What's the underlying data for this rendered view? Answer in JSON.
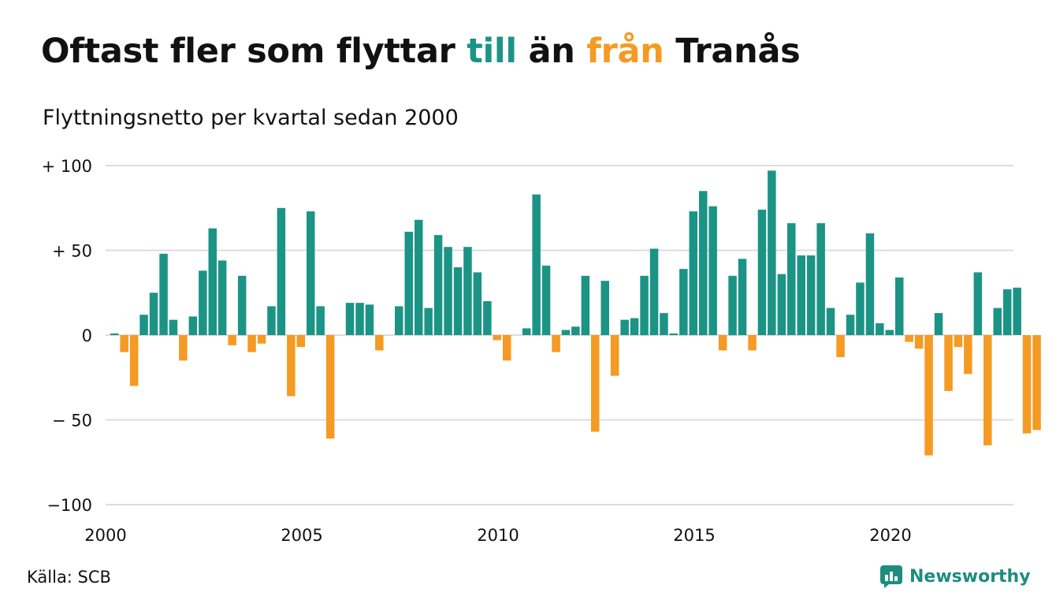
{
  "title": {
    "part1": "Oftast fler som flyttar ",
    "part2": "till",
    "part3": " än ",
    "part4": "från",
    "part5": " Tranås"
  },
  "subtitle": "Flyttningsnetto per kvartal sedan 2000",
  "source": "Källa: SCB",
  "brand": "Newsworthy",
  "colors": {
    "positive": "#1b9486",
    "negative": "#f59a22",
    "grid": "#dddddd",
    "text": "#111111",
    "brand": "#1f8c80"
  },
  "chart_data": {
    "type": "bar",
    "ylim": [
      -100,
      100
    ],
    "y_ticks": [
      100,
      50,
      0,
      -50,
      -100
    ],
    "y_tick_labels": [
      "+ 100",
      "+  50",
      "0",
      "− 50",
      "−100"
    ],
    "x_ticks": [
      2000,
      2005,
      2010,
      2015,
      2020
    ],
    "x_tick_labels": [
      "2000",
      "2005",
      "2010",
      "2015",
      "2020"
    ],
    "x_start_year": 2000,
    "bar_frequency": "quarterly",
    "grid": true,
    "legend": "none",
    "values": [
      1,
      -10,
      -30,
      12,
      25,
      48,
      9,
      -15,
      11,
      38,
      63,
      44,
      -6,
      35,
      -10,
      -5,
      17,
      75,
      -36,
      -7,
      73,
      17,
      -61,
      0,
      19,
      19,
      18,
      -9,
      0,
      17,
      61,
      68,
      16,
      59,
      52,
      40,
      52,
      37,
      20,
      -3,
      -15,
      0,
      4,
      83,
      41,
      -10,
      3,
      5,
      35,
      -57,
      32,
      -24,
      9,
      10,
      35,
      51,
      13,
      1,
      39,
      73,
      85,
      76,
      -9,
      35,
      45,
      -9,
      74,
      97,
      36,
      66,
      47,
      47,
      66,
      16,
      -13,
      12,
      31,
      60,
      7,
      3,
      34,
      -4,
      -8,
      -71,
      13,
      -33,
      -7,
      -23,
      37,
      -65,
      16,
      27,
      28,
      -58,
      -56
    ]
  }
}
